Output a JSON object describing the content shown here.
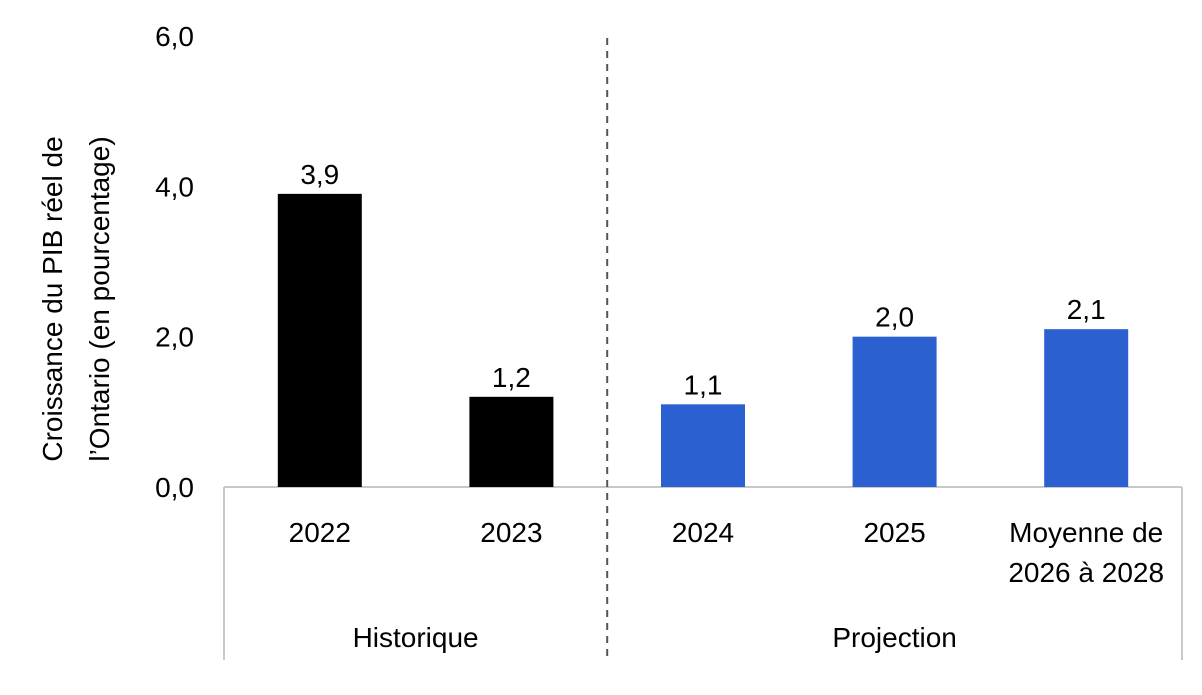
{
  "chart_data": {
    "type": "bar",
    "title": "",
    "xlabel": "",
    "ylabel": "Croissance du PIB réel de l’Ontario (en pourcentage)",
    "ylabel_lines": [
      "Croissance du PIB réel de",
      "l’Ontario (en pourcentage)"
    ],
    "ylim": [
      0,
      6
    ],
    "yticks": [
      "0,0",
      "2,0",
      "4,0",
      "6,0"
    ],
    "ytick_values": [
      0,
      2,
      4,
      6
    ],
    "grid": false,
    "categories": [
      {
        "label_lines": [
          "2022"
        ],
        "value": 3.9,
        "value_label": "3,9",
        "group": "Historique"
      },
      {
        "label_lines": [
          "2023"
        ],
        "value": 1.2,
        "value_label": "1,2",
        "group": "Historique"
      },
      {
        "label_lines": [
          "2024"
        ],
        "value": 1.1,
        "value_label": "1,1",
        "group": "Projection"
      },
      {
        "label_lines": [
          "2025"
        ],
        "value": 2.0,
        "value_label": "2,0",
        "group": "Projection"
      },
      {
        "label_lines": [
          "Moyenne de",
          "2026 à 2028"
        ],
        "value": 2.1,
        "value_label": "2,1",
        "group": "Projection"
      }
    ],
    "groups": [
      {
        "name": "Historique",
        "color": "#000000"
      },
      {
        "name": "Projection",
        "color": "#2B60D0"
      }
    ],
    "separator": "dashed line between Historique and Projection"
  }
}
